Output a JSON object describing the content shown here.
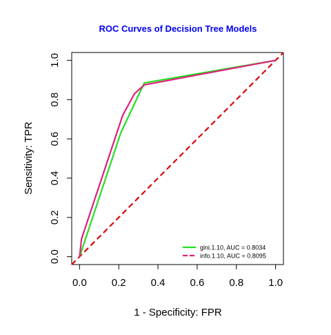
{
  "chart_data": {
    "type": "line",
    "title": "ROC Curves of Decision Tree Models",
    "title_color": "#0000EE",
    "xlabel": "1 - Specificity: FPR",
    "ylabel": "Sensitivity: TPR",
    "xlim": [
      -0.04,
      1.04
    ],
    "ylim": [
      -0.04,
      1.04
    ],
    "x_ticks": [
      0.0,
      0.2,
      0.4,
      0.6,
      0.8,
      1.0
    ],
    "x_tick_labels": [
      "0.0",
      "0.2",
      "0.4",
      "0.6",
      "0.8",
      "1.0"
    ],
    "y_ticks": [
      0.0,
      0.2,
      0.4,
      0.6,
      0.8,
      1.0
    ],
    "y_tick_labels": [
      "0.0",
      "0.2",
      "0.4",
      "0.6",
      "0.8",
      "1.0"
    ],
    "grid": false,
    "legend_position": "bottom-right",
    "reference_line": {
      "name": "random-classifier",
      "x": [
        0,
        1
      ],
      "y": [
        0,
        1
      ],
      "color": "#DD0000",
      "style": "dashed"
    },
    "series": [
      {
        "name": "gini.1.10",
        "legend_label": "gini.1.10, AUC = 0.8034",
        "color": "#22DD22",
        "style": "solid",
        "x": [
          0.0,
          0.21,
          0.33,
          1.0
        ],
        "y": [
          0.0,
          0.63,
          0.885,
          1.0
        ]
      },
      {
        "name": "info.1.10",
        "legend_label": "info.1.10, AUC = 0.8095",
        "color": "#E0207A",
        "style": "solid",
        "x": [
          0.0,
          0.01,
          0.22,
          0.28,
          0.33,
          1.0
        ],
        "y": [
          0.0,
          0.09,
          0.72,
          0.83,
          0.875,
          1.0
        ]
      }
    ]
  }
}
